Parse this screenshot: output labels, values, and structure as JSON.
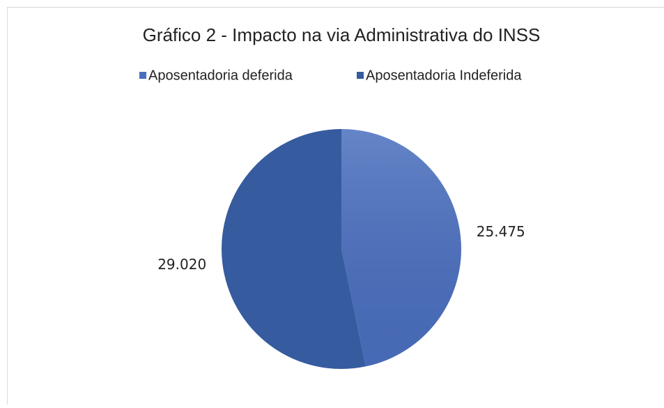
{
  "chart_data": {
    "type": "pie",
    "title": "Gráfico 2 - Impacto na via Administrativa do INSS",
    "categories": [
      "Aposentadoria deferida",
      "Aposentadoria Indeferida"
    ],
    "values": [
      25475,
      29020
    ],
    "value_labels": [
      "25.475",
      "29.020"
    ],
    "colors": [
      "#4a6fbf",
      "#365b9e"
    ],
    "legend": "top"
  }
}
